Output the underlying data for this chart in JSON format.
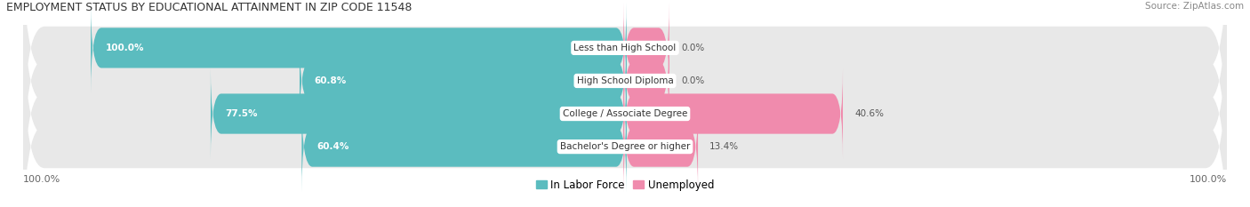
{
  "title": "EMPLOYMENT STATUS BY EDUCATIONAL ATTAINMENT IN ZIP CODE 11548",
  "source": "Source: ZipAtlas.com",
  "categories": [
    "Less than High School",
    "High School Diploma",
    "College / Associate Degree",
    "Bachelor's Degree or higher"
  ],
  "in_labor_force": [
    100.0,
    60.8,
    77.5,
    60.4
  ],
  "unemployed": [
    0.0,
    0.0,
    40.6,
    13.4
  ],
  "labor_force_color": "#5bbcbf",
  "unemployed_color": "#f08bad",
  "bg_row_color": "#e8e8e8",
  "axis_min": -100.0,
  "axis_max": 100.0,
  "legend_lf": "In Labor Force",
  "legend_un": "Unemployed",
  "bottom_left_label": "100.0%",
  "bottom_right_label": "100.0%"
}
